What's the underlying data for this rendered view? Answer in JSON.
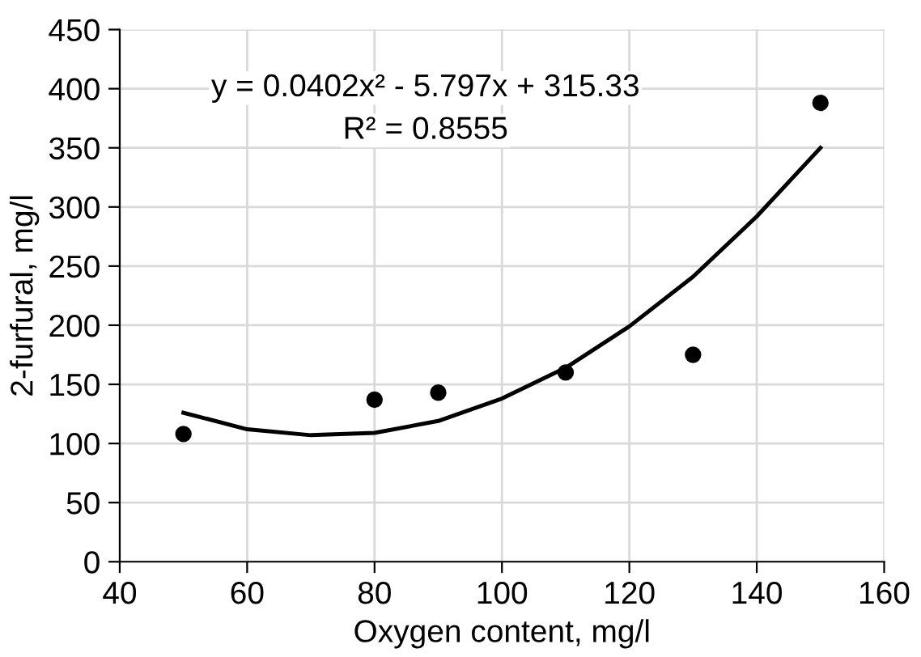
{
  "chart_data": {
    "type": "scatter",
    "xlabel": "Oxygen content, mg/l",
    "ylabel": "2-furfural, mg/l",
    "x": [
      50,
      80,
      90,
      110,
      130,
      150
    ],
    "series": [
      {
        "color": "#000000",
        "values": [
          108,
          137,
          143,
          160,
          175,
          388
        ],
        "marker": "circle"
      },
      {
        "type": "line",
        "color": "#000000",
        "x": [
          50,
          60,
          70,
          80,
          90,
          100,
          110,
          120,
          130,
          140,
          150
        ],
        "values": [
          126,
          112,
          107,
          109,
          119,
          138,
          164,
          199,
          241,
          292,
          350
        ],
        "marker": "none",
        "line_style": "solid"
      }
    ],
    "annotations": [
      "y = 0.0402x² - 5.797x + 315.33",
      "R² = 0.8555"
    ],
    "xlim": [
      40,
      160
    ],
    "xticks": [
      40,
      60,
      80,
      100,
      120,
      140,
      160
    ],
    "ylim": [
      0,
      450
    ],
    "yticks": [
      0,
      50,
      100,
      150,
      200,
      250,
      300,
      350,
      400,
      450
    ],
    "grid": true,
    "legend": false
  }
}
